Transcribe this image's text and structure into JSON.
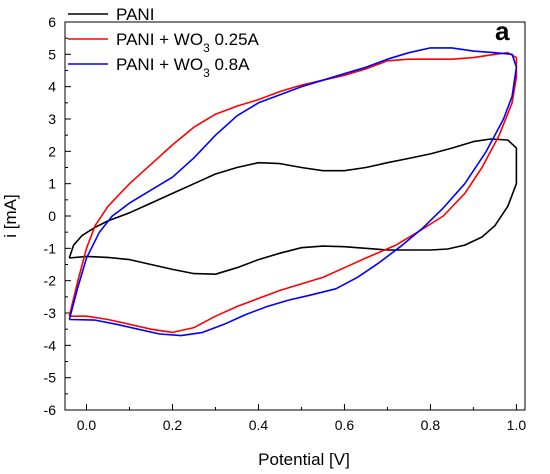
{
  "chart_data": {
    "type": "line",
    "panel_label": "a",
    "xlabel": "Potential [V]",
    "ylabel": "i [mA]",
    "xlim": [
      -0.05,
      1.02
    ],
    "ylim": [
      -6,
      6
    ],
    "xticks": [
      "0.0",
      "0.2",
      "0.4",
      "0.6",
      "0.8",
      "1.0"
    ],
    "yticks": [
      "-6",
      "-5",
      "-4",
      "-3",
      "-2",
      "-1",
      "0",
      "1",
      "2",
      "3",
      "4",
      "5",
      "6"
    ],
    "legend_position": "top-left",
    "series": [
      {
        "name": "PANI",
        "name_parts": [
          "PANI",
          "",
          ""
        ],
        "color": "#000000",
        "points": [
          [
            -0.04,
            -1.3
          ],
          [
            -0.03,
            -0.9
          ],
          [
            -0.01,
            -0.6
          ],
          [
            0.02,
            -0.35
          ],
          [
            0.05,
            -0.15
          ],
          [
            0.1,
            0.1
          ],
          [
            0.15,
            0.4
          ],
          [
            0.2,
            0.7
          ],
          [
            0.25,
            1.0
          ],
          [
            0.3,
            1.3
          ],
          [
            0.35,
            1.5
          ],
          [
            0.4,
            1.65
          ],
          [
            0.45,
            1.62
          ],
          [
            0.5,
            1.5
          ],
          [
            0.55,
            1.4
          ],
          [
            0.6,
            1.4
          ],
          [
            0.65,
            1.5
          ],
          [
            0.7,
            1.65
          ],
          [
            0.75,
            1.78
          ],
          [
            0.8,
            1.92
          ],
          [
            0.85,
            2.1
          ],
          [
            0.9,
            2.3
          ],
          [
            0.94,
            2.38
          ],
          [
            0.98,
            2.35
          ],
          [
            1.0,
            2.1
          ],
          [
            1.0,
            1.8
          ],
          [
            1.0,
            1.0
          ],
          [
            0.98,
            0.3
          ],
          [
            0.95,
            -0.3
          ],
          [
            0.92,
            -0.65
          ],
          [
            0.88,
            -0.9
          ],
          [
            0.84,
            -1.02
          ],
          [
            0.8,
            -1.05
          ],
          [
            0.7,
            -1.05
          ],
          [
            0.6,
            -0.95
          ],
          [
            0.55,
            -0.93
          ],
          [
            0.5,
            -0.98
          ],
          [
            0.45,
            -1.15
          ],
          [
            0.4,
            -1.35
          ],
          [
            0.35,
            -1.6
          ],
          [
            0.3,
            -1.8
          ],
          [
            0.25,
            -1.78
          ],
          [
            0.2,
            -1.65
          ],
          [
            0.15,
            -1.5
          ],
          [
            0.1,
            -1.35
          ],
          [
            0.05,
            -1.28
          ],
          [
            0.0,
            -1.25
          ],
          [
            -0.04,
            -1.3
          ]
        ]
      },
      {
        "name": "PANI + WO3 0.25A",
        "name_parts": [
          "PANI + WO",
          "3",
          " 0.25A"
        ],
        "color": "#ff0000",
        "points": [
          [
            -0.04,
            -3.1
          ],
          [
            -0.02,
            -2.0
          ],
          [
            0.0,
            -1.0
          ],
          [
            0.02,
            -0.3
          ],
          [
            0.05,
            0.3
          ],
          [
            0.1,
            1.0
          ],
          [
            0.15,
            1.6
          ],
          [
            0.2,
            2.2
          ],
          [
            0.25,
            2.75
          ],
          [
            0.3,
            3.15
          ],
          [
            0.35,
            3.4
          ],
          [
            0.4,
            3.6
          ],
          [
            0.45,
            3.85
          ],
          [
            0.5,
            4.05
          ],
          [
            0.55,
            4.2
          ],
          [
            0.6,
            4.35
          ],
          [
            0.65,
            4.55
          ],
          [
            0.7,
            4.8
          ],
          [
            0.75,
            4.85
          ],
          [
            0.8,
            4.85
          ],
          [
            0.85,
            4.85
          ],
          [
            0.9,
            4.9
          ],
          [
            0.95,
            5.0
          ],
          [
            0.98,
            5.05
          ],
          [
            1.0,
            4.9
          ],
          [
            1.0,
            4.3
          ],
          [
            0.99,
            3.5
          ],
          [
            0.96,
            2.5
          ],
          [
            0.92,
            1.5
          ],
          [
            0.88,
            0.7
          ],
          [
            0.83,
            0.0
          ],
          [
            0.77,
            -0.5
          ],
          [
            0.72,
            -0.9
          ],
          [
            0.65,
            -1.3
          ],
          [
            0.6,
            -1.6
          ],
          [
            0.55,
            -1.9
          ],
          [
            0.5,
            -2.1
          ],
          [
            0.45,
            -2.3
          ],
          [
            0.4,
            -2.55
          ],
          [
            0.35,
            -2.8
          ],
          [
            0.3,
            -3.1
          ],
          [
            0.25,
            -3.45
          ],
          [
            0.2,
            -3.6
          ],
          [
            0.15,
            -3.5
          ],
          [
            0.1,
            -3.35
          ],
          [
            0.05,
            -3.2
          ],
          [
            0.0,
            -3.1
          ],
          [
            -0.04,
            -3.1
          ]
        ]
      },
      {
        "name": "PANI + WO3 0.8A",
        "name_parts": [
          "PANI + WO",
          "3",
          " 0.8A"
        ],
        "color": "#0000ff",
        "points": [
          [
            -0.04,
            -3.2
          ],
          [
            -0.02,
            -2.2
          ],
          [
            0.0,
            -1.3
          ],
          [
            0.03,
            -0.5
          ],
          [
            0.06,
            0.0
          ],
          [
            0.1,
            0.4
          ],
          [
            0.15,
            0.8
          ],
          [
            0.2,
            1.2
          ],
          [
            0.25,
            1.8
          ],
          [
            0.3,
            2.5
          ],
          [
            0.35,
            3.1
          ],
          [
            0.4,
            3.5
          ],
          [
            0.45,
            3.75
          ],
          [
            0.5,
            4.0
          ],
          [
            0.55,
            4.2
          ],
          [
            0.6,
            4.4
          ],
          [
            0.65,
            4.6
          ],
          [
            0.7,
            4.85
          ],
          [
            0.75,
            5.05
          ],
          [
            0.8,
            5.2
          ],
          [
            0.85,
            5.2
          ],
          [
            0.9,
            5.1
          ],
          [
            0.95,
            5.05
          ],
          [
            0.99,
            5.0
          ],
          [
            1.0,
            4.6
          ],
          [
            0.99,
            3.7
          ],
          [
            0.97,
            3.0
          ],
          [
            0.93,
            2.0
          ],
          [
            0.88,
            1.0
          ],
          [
            0.83,
            0.25
          ],
          [
            0.78,
            -0.4
          ],
          [
            0.73,
            -0.95
          ],
          [
            0.68,
            -1.45
          ],
          [
            0.63,
            -1.9
          ],
          [
            0.58,
            -2.25
          ],
          [
            0.52,
            -2.45
          ],
          [
            0.47,
            -2.6
          ],
          [
            0.42,
            -2.8
          ],
          [
            0.37,
            -3.05
          ],
          [
            0.32,
            -3.35
          ],
          [
            0.27,
            -3.6
          ],
          [
            0.22,
            -3.7
          ],
          [
            0.17,
            -3.65
          ],
          [
            0.12,
            -3.5
          ],
          [
            0.07,
            -3.35
          ],
          [
            0.02,
            -3.22
          ],
          [
            -0.04,
            -3.2
          ]
        ]
      }
    ]
  }
}
